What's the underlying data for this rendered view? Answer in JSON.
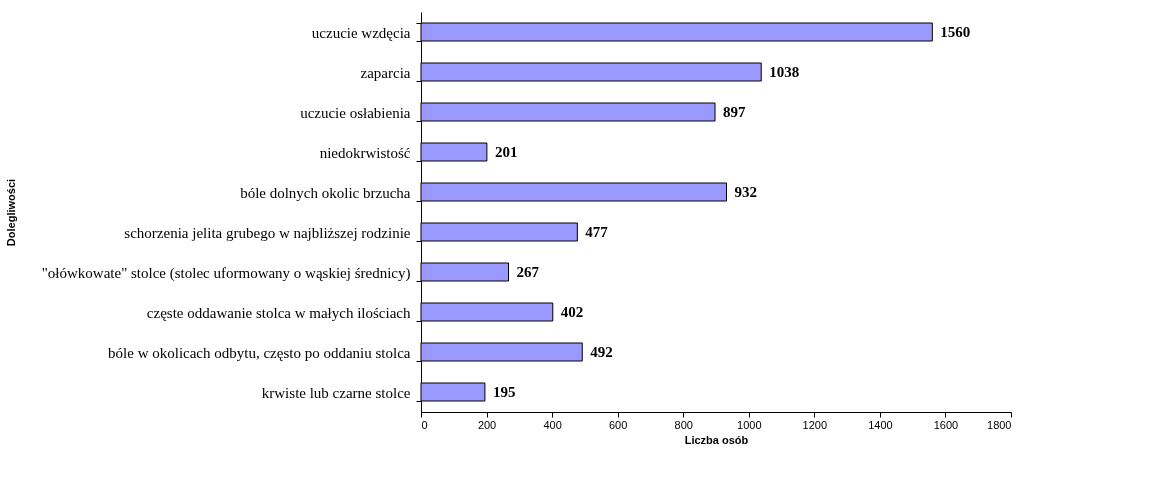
{
  "chart_data": {
    "type": "bar",
    "orientation": "horizontal",
    "xlabel": "Liczba osób",
    "ylabel": "Dolegliwości",
    "categories": [
      "uczucie wzdęcia",
      "zaparcia",
      "uczucie osłabienia",
      "niedokrwistość",
      "bóle dolnych okolic brzucha",
      "schorzenia jelita grubego w najbliższej rodzinie",
      "\"ołówkowate\" stolce (stolec uformowany o wąskiej  średnicy)",
      "częste oddawanie stolca w małych ilościach",
      "bóle w okolicach odbytu, często po oddaniu stolca",
      "krwiste lub czarne stolce"
    ],
    "values": [
      1560,
      1038,
      897,
      201,
      932,
      477,
      267,
      402,
      492,
      195
    ],
    "color": "#9999ff",
    "xlim": [
      0,
      1800
    ],
    "xticks": [
      0,
      200,
      400,
      600,
      800,
      1000,
      1200,
      1400,
      1600,
      1800
    ],
    "grid": false,
    "data_labels": true
  }
}
